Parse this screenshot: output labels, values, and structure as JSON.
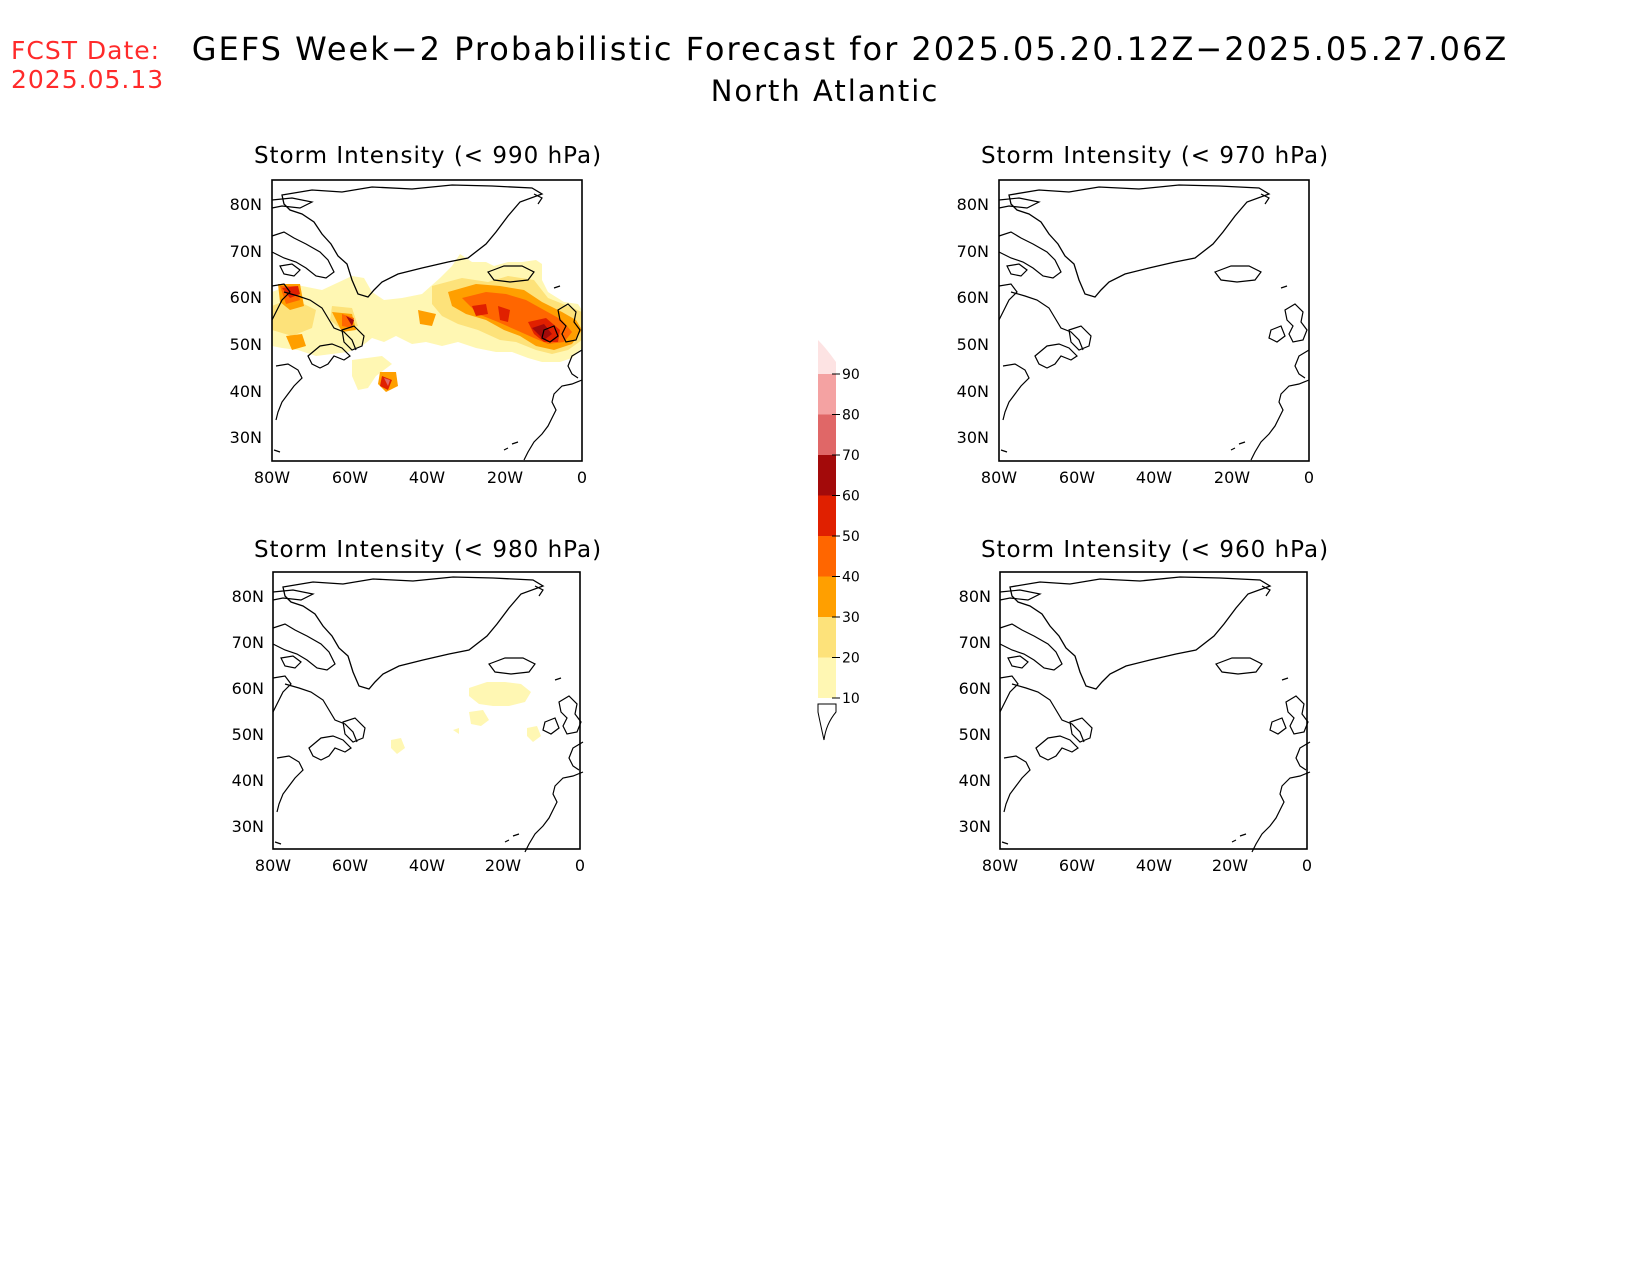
{
  "header": {
    "fcst_label": "FCST Date:",
    "fcst_date": "2025.05.13",
    "title": "GEFS Week−2 Probabilistic Forecast for 2025.05.20.12Z−2025.05.27.06Z",
    "subtitle": "North Atlantic"
  },
  "axes": {
    "lat_labels": [
      "80N",
      "70N",
      "60N",
      "50N",
      "40N",
      "30N"
    ],
    "lon_labels": [
      "80W",
      "60W",
      "40W",
      "20W",
      "0"
    ]
  },
  "panels": [
    {
      "id": "p990",
      "title": "Storm Intensity (< 990 hPa)"
    },
    {
      "id": "p970",
      "title": "Storm Intensity (< 970 hPa)"
    },
    {
      "id": "p980",
      "title": "Storm Intensity (< 980 hPa)"
    },
    {
      "id": "p960",
      "title": "Storm Intensity (< 960 hPa)"
    }
  ],
  "colorbar": {
    "labels": [
      "90",
      "80",
      "70",
      "60",
      "50",
      "40",
      "30",
      "20",
      "10"
    ],
    "colors": [
      "#fde3e3",
      "#f4a2a2",
      "#e06767",
      "#a30a0a",
      "#e02000",
      "#ff6600",
      "#ff9f00",
      "#fde27a",
      "#fff7b3"
    ]
  }
}
